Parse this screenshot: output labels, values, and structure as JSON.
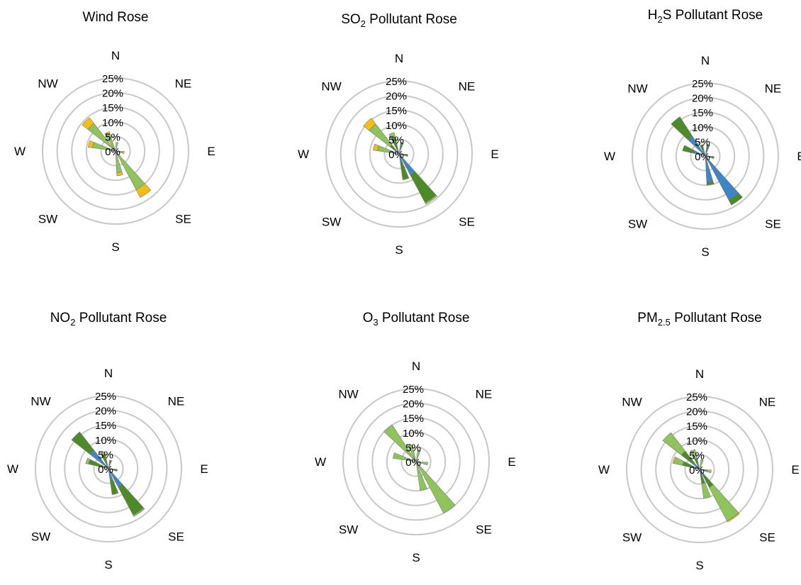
{
  "colors": {
    "light_green": "#8fc35c",
    "dark_green": "#4e8a2a",
    "blue": "#3d85c6",
    "yellow": "#f6bd16",
    "grid": "#c8c8c8"
  },
  "chart_data": [
    {
      "type": "polar-stacked-bar",
      "title_main": "Wind Rose",
      "title_sub": "",
      "title_tail": "",
      "directions": [
        "N",
        "NE",
        "E",
        "SE",
        "S",
        "SW",
        "W",
        "NW"
      ],
      "rlim": [
        0,
        25
      ],
      "rticks": [
        "0%",
        "5%",
        "10%",
        "15%",
        "20%",
        "25%"
      ],
      "grid": true,
      "petals": [
        {
          "angle": 10,
          "segments": [
            {
              "color": "dark_green",
              "value": 1
            },
            {
              "color": "light_green",
              "value": 2
            }
          ]
        },
        {
          "angle": 100,
          "segments": [
            {
              "color": "dark_green",
              "value": 1
            },
            {
              "color": "light_green",
              "value": 1.5
            },
            {
              "color": "yellow",
              "value": 0.5
            }
          ]
        },
        {
          "angle": 145,
          "segments": [
            {
              "color": "dark_green",
              "value": 1
            },
            {
              "color": "light_green",
              "value": 14
            },
            {
              "color": "yellow",
              "value": 3
            }
          ]
        },
        {
          "angle": 170,
          "segments": [
            {
              "color": "dark_green",
              "value": 1
            },
            {
              "color": "light_green",
              "value": 6.5
            },
            {
              "color": "yellow",
              "value": 1
            }
          ]
        },
        {
          "angle": 285,
          "segments": [
            {
              "color": "dark_green",
              "value": 1
            },
            {
              "color": "light_green",
              "value": 7
            },
            {
              "color": "yellow",
              "value": 1.5
            }
          ]
        },
        {
          "angle": 315,
          "segments": [
            {
              "color": "dark_green",
              "value": 1
            },
            {
              "color": "light_green",
              "value": 11
            },
            {
              "color": "yellow",
              "value": 2.5
            }
          ]
        },
        {
          "angle": 335,
          "segments": [
            {
              "color": "dark_green",
              "value": 1
            },
            {
              "color": "light_green",
              "value": 5
            },
            {
              "color": "yellow",
              "value": 1
            }
          ]
        }
      ]
    },
    {
      "type": "polar-stacked-bar",
      "title_main": "SO",
      "title_sub": "2",
      "title_tail": " Pollutant Rose",
      "directions": [
        "N",
        "NE",
        "E",
        "SE",
        "S",
        "SW",
        "W",
        "NW"
      ],
      "rlim": [
        0,
        25
      ],
      "rticks": [
        "0%",
        "5%",
        "10%",
        "15%",
        "20%",
        "25%"
      ],
      "grid": true,
      "petals": [
        {
          "angle": 15,
          "segments": [
            {
              "color": "blue",
              "value": 3
            },
            {
              "color": "dark_green",
              "value": 1
            }
          ]
        },
        {
          "angle": 100,
          "segments": [
            {
              "color": "blue",
              "value": 1
            },
            {
              "color": "dark_green",
              "value": 2
            }
          ]
        },
        {
          "angle": 145,
          "segments": [
            {
              "color": "blue",
              "value": 8
            },
            {
              "color": "dark_green",
              "value": 11
            },
            {
              "color": "light_green",
              "value": 0.5
            }
          ]
        },
        {
          "angle": 165,
          "segments": [
            {
              "color": "blue",
              "value": 3
            },
            {
              "color": "dark_green",
              "value": 6
            }
          ]
        },
        {
          "angle": 285,
          "segments": [
            {
              "color": "blue",
              "value": 2
            },
            {
              "color": "light_green",
              "value": 5.5
            },
            {
              "color": "yellow",
              "value": 1.5
            }
          ]
        },
        {
          "angle": 315,
          "segments": [
            {
              "color": "blue",
              "value": 2
            },
            {
              "color": "dark_green",
              "value": 2
            },
            {
              "color": "light_green",
              "value": 9
            },
            {
              "color": "yellow",
              "value": 2.5
            }
          ]
        },
        {
          "angle": 340,
          "segments": [
            {
              "color": "dark_green",
              "value": 6
            },
            {
              "color": "light_green",
              "value": 1.5
            }
          ]
        }
      ]
    },
    {
      "type": "polar-stacked-bar",
      "title_main": "H",
      "title_sub": "2",
      "title_tail": "S Pollutant Rose",
      "directions": [
        "N",
        "NE",
        "E",
        "SE",
        "S",
        "SW",
        "W",
        "NW"
      ],
      "rlim": [
        0,
        25
      ],
      "rticks": [
        "0%",
        "5%",
        "10%",
        "15%",
        "20%",
        "25%"
      ],
      "grid": true,
      "petals": [
        {
          "angle": 15,
          "segments": [
            {
              "color": "blue",
              "value": 3
            },
            {
              "color": "dark_green",
              "value": 1
            }
          ]
        },
        {
          "angle": 100,
          "segments": [
            {
              "color": "blue",
              "value": 2
            },
            {
              "color": "dark_green",
              "value": 1
            }
          ]
        },
        {
          "angle": 145,
          "segments": [
            {
              "color": "blue",
              "value": 17
            },
            {
              "color": "dark_green",
              "value": 2
            }
          ]
        },
        {
          "angle": 170,
          "segments": [
            {
              "color": "blue",
              "value": 9
            },
            {
              "color": "dark_green",
              "value": 1
            }
          ]
        },
        {
          "angle": 290,
          "segments": [
            {
              "color": "blue",
              "value": 4
            },
            {
              "color": "dark_green",
              "value": 4
            }
          ]
        },
        {
          "angle": 320,
          "segments": [
            {
              "color": "blue",
              "value": 8
            },
            {
              "color": "dark_green",
              "value": 8
            }
          ]
        },
        {
          "angle": 340,
          "segments": [
            {
              "color": "blue",
              "value": 2
            },
            {
              "color": "dark_green",
              "value": 2
            }
          ]
        }
      ]
    },
    {
      "type": "polar-stacked-bar",
      "title_main": "NO",
      "title_sub": "2",
      "title_tail": " Pollutant Rose",
      "directions": [
        "N",
        "NE",
        "E",
        "SE",
        "S",
        "SW",
        "W",
        "NW"
      ],
      "rlim": [
        0,
        25
      ],
      "rticks": [
        "0%",
        "5%",
        "10%",
        "15%",
        "20%",
        "25%"
      ],
      "grid": true,
      "petals": [
        {
          "angle": 15,
          "segments": [
            {
              "color": "blue",
              "value": 2
            },
            {
              "color": "dark_green",
              "value": 1
            }
          ]
        },
        {
          "angle": 100,
          "segments": [
            {
              "color": "blue",
              "value": 1.5
            },
            {
              "color": "dark_green",
              "value": 1.5
            }
          ]
        },
        {
          "angle": 145,
          "segments": [
            {
              "color": "blue",
              "value": 7
            },
            {
              "color": "dark_green",
              "value": 11
            },
            {
              "color": "light_green",
              "value": 0.5
            }
          ]
        },
        {
          "angle": 165,
          "segments": [
            {
              "color": "blue",
              "value": 4
            },
            {
              "color": "dark_green",
              "value": 5
            }
          ]
        },
        {
          "angle": 290,
          "segments": [
            {
              "color": "blue",
              "value": 2
            },
            {
              "color": "dark_green",
              "value": 5
            },
            {
              "color": "light_green",
              "value": 1
            }
          ]
        },
        {
          "angle": 315,
          "segments": [
            {
              "color": "blue",
              "value": 8
            },
            {
              "color": "dark_green",
              "value": 8
            }
          ]
        },
        {
          "angle": 340,
          "segments": [
            {
              "color": "dark_green",
              "value": 5
            },
            {
              "color": "light_green",
              "value": 1
            }
          ]
        }
      ]
    },
    {
      "type": "polar-stacked-bar",
      "title_main": "O",
      "title_sub": "3",
      "title_tail": " Pollutant Rose",
      "directions": [
        "N",
        "NE",
        "E",
        "SE",
        "S",
        "SW",
        "W",
        "NW"
      ],
      "rlim": [
        0,
        25
      ],
      "rticks": [
        "0%",
        "5%",
        "10%",
        "15%",
        "20%",
        "25%"
      ],
      "grid": true,
      "petals": [
        {
          "angle": 15,
          "segments": [
            {
              "color": "light_green",
              "value": 4
            }
          ]
        },
        {
          "angle": 100,
          "segments": [
            {
              "color": "light_green",
              "value": 4
            }
          ]
        },
        {
          "angle": 145,
          "segments": [
            {
              "color": "light_green",
              "value": 20
            }
          ]
        },
        {
          "angle": 165,
          "segments": [
            {
              "color": "light_green",
              "value": 10
            }
          ]
        },
        {
          "angle": 285,
          "segments": [
            {
              "color": "light_green",
              "value": 8
            }
          ]
        },
        {
          "angle": 320,
          "segments": [
            {
              "color": "light_green",
              "value": 15
            }
          ]
        },
        {
          "angle": 340,
          "segments": [
            {
              "color": "light_green",
              "value": 6
            }
          ]
        }
      ]
    },
    {
      "type": "polar-stacked-bar",
      "title_main": "PM",
      "title_sub": "2.5",
      "title_tail": " Pollutant Rose",
      "directions": [
        "N",
        "NE",
        "E",
        "SE",
        "S",
        "SW",
        "W",
        "NW"
      ],
      "rlim": [
        0,
        25
      ],
      "rticks": [
        "0%",
        "5%",
        "10%",
        "15%",
        "20%",
        "25%"
      ],
      "grid": true,
      "petals": [
        {
          "angle": 15,
          "segments": [
            {
              "color": "blue",
              "value": 1
            },
            {
              "color": "light_green",
              "value": 2.5
            }
          ]
        },
        {
          "angle": 100,
          "segments": [
            {
              "color": "blue",
              "value": 1
            },
            {
              "color": "dark_green",
              "value": 1.5
            },
            {
              "color": "light_green",
              "value": 1.5
            }
          ]
        },
        {
          "angle": 145,
          "segments": [
            {
              "color": "blue",
              "value": 2
            },
            {
              "color": "dark_green",
              "value": 5
            },
            {
              "color": "light_green",
              "value": 13
            },
            {
              "color": "yellow",
              "value": 0.4
            }
          ]
        },
        {
          "angle": 165,
          "segments": [
            {
              "color": "blue",
              "value": 2
            },
            {
              "color": "dark_green",
              "value": 3
            },
            {
              "color": "light_green",
              "value": 5
            }
          ]
        },
        {
          "angle": 290,
          "segments": [
            {
              "color": "blue",
              "value": 3
            },
            {
              "color": "dark_green",
              "value": 3
            },
            {
              "color": "light_green",
              "value": 3
            },
            {
              "color": "yellow",
              "value": 0.5
            }
          ]
        },
        {
          "angle": 315,
          "segments": [
            {
              "color": "blue",
              "value": 3
            },
            {
              "color": "dark_green",
              "value": 5
            },
            {
              "color": "light_green",
              "value": 8
            }
          ]
        },
        {
          "angle": 340,
          "segments": [
            {
              "color": "dark_green",
              "value": 4
            },
            {
              "color": "light_green",
              "value": 3
            }
          ]
        }
      ]
    }
  ]
}
